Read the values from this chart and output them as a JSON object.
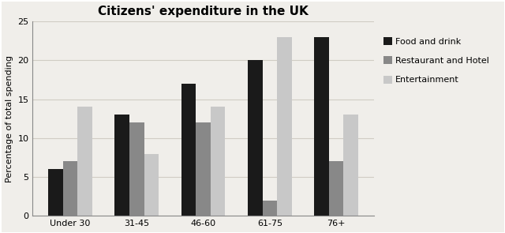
{
  "title": "Citizens' expenditure in the UK",
  "ylabel": "Percentage of total spending",
  "categories": [
    "Under 30",
    "31-45",
    "46-60",
    "61-75",
    "76+"
  ],
  "series": [
    {
      "label": "Food and drink",
      "values": [
        6,
        13,
        17,
        20,
        23
      ],
      "color": "#1a1a1a"
    },
    {
      "label": "Restaurant and Hotel",
      "values": [
        7,
        12,
        12,
        2,
        7
      ],
      "color": "#888888"
    },
    {
      "label": "Entertainment",
      "values": [
        14,
        8,
        14,
        23,
        13
      ],
      "color": "#c8c8c8"
    }
  ],
  "ylim": [
    0,
    25
  ],
  "yticks": [
    0,
    5,
    10,
    15,
    20,
    25
  ],
  "background_color": "#f0eeea",
  "plot_background_color": "#f0eeea",
  "title_fontsize": 11,
  "label_fontsize": 8,
  "tick_fontsize": 8,
  "legend_fontsize": 8,
  "bar_width": 0.22,
  "grid_color": "#d0ccc4",
  "grid_linewidth": 0.8
}
